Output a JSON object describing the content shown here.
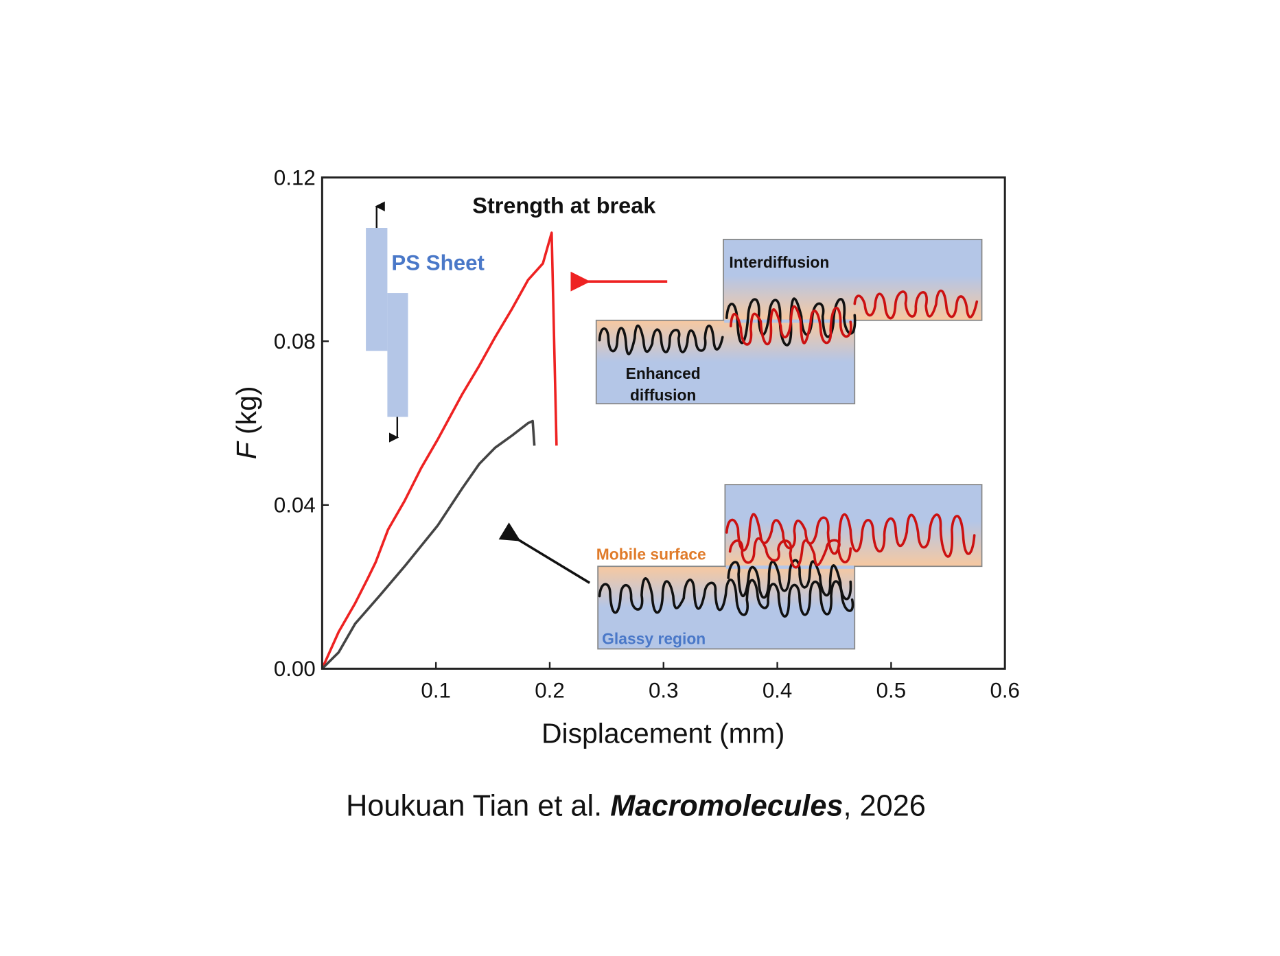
{
  "chart_data": {
    "type": "line",
    "title": "Strength at break",
    "xlabel": "Displacement (mm)",
    "ylabel_italic": "F",
    "ylabel_unit": " (kg)",
    "xlim": [
      0,
      0.6
    ],
    "ylim": [
      0,
      0.12
    ],
    "xticks": [
      "0.1",
      "0.2",
      "0.3",
      "0.4",
      "0.5",
      "0.6"
    ],
    "xtick_values": [
      0.1,
      0.2,
      0.3,
      0.4,
      0.5,
      0.6
    ],
    "yticks": [
      "0.00",
      "0.04",
      "0.08",
      "0.12"
    ],
    "ytick_values": [
      0,
      0.04,
      0.08,
      0.12
    ],
    "grid": false,
    "series": [
      {
        "name": "red",
        "color": "#ee2222",
        "x": [
          0,
          0.0145,
          0.029,
          0.04,
          0.047,
          0.058,
          0.0725,
          0.087,
          0.1016,
          0.123,
          0.138,
          0.152,
          0.167,
          0.181,
          0.194,
          0.2017,
          0.206
        ],
        "y": [
          0,
          0.009,
          0.016,
          0.022,
          0.026,
          0.034,
          0.041,
          0.049,
          0.056,
          0.067,
          0.074,
          0.081,
          0.088,
          0.095,
          0.099,
          0.1065,
          0.0545
        ]
      },
      {
        "name": "black",
        "color": "#444444",
        "x": [
          0,
          0.0145,
          0.029,
          0.051,
          0.0725,
          0.087,
          0.1016,
          0.123,
          0.138,
          0.152,
          0.167,
          0.181,
          0.185,
          0.1865
        ],
        "y": [
          0,
          0.004,
          0.011,
          0.018,
          0.025,
          0.03,
          0.035,
          0.044,
          0.05,
          0.054,
          0.057,
          0.06,
          0.0605,
          0.0545
        ]
      }
    ],
    "annotations": {
      "ps_sheet": "PS Sheet",
      "interdiffusion": "Interdiffusion",
      "enhanced_1": "Enhanced",
      "enhanced_2": "diffusion",
      "mobile_surface": "Mobile surface",
      "glassy_region": "Glassy region"
    }
  },
  "caption": {
    "authors": "Houkuan Tian et al. ",
    "journal": "Macromolecules",
    "year": ", 2026"
  },
  "colors": {
    "red": "#ee2222",
    "blue_box": "#b4c6e7",
    "orange": "#f7c8a0",
    "label_blue": "#4a78c8",
    "label_orange": "#e07b2a"
  }
}
